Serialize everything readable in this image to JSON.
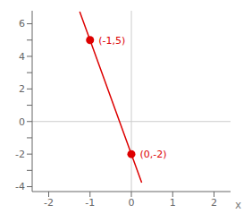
{
  "chart_data": {
    "type": "line",
    "xlabel": "x",
    "color": "#dd0000",
    "x": [
      -1.25,
      -1,
      0,
      0.25
    ],
    "values": [
      6.75,
      5,
      -2,
      -3.75
    ],
    "annotations": [
      {
        "x": -1,
        "y": 5,
        "text": "(-1,5)"
      },
      {
        "x": 0,
        "y": -2,
        "text": "(0,-2)"
      }
    ],
    "xlim": [
      -2.4,
      2.4
    ],
    "ylim": [
      -4.3,
      6.8
    ],
    "xticks": [
      -2,
      -1,
      0,
      1,
      2
    ],
    "yticks": [
      -4,
      {
        "value": -3,
        "label": ""
      },
      -2,
      {
        "value": -1,
        "label": ""
      },
      0,
      {
        "value": 1,
        "label": ""
      },
      2,
      {
        "value": 3,
        "label": ""
      },
      4,
      {
        "value": 5,
        "label": ""
      },
      6
    ]
  }
}
